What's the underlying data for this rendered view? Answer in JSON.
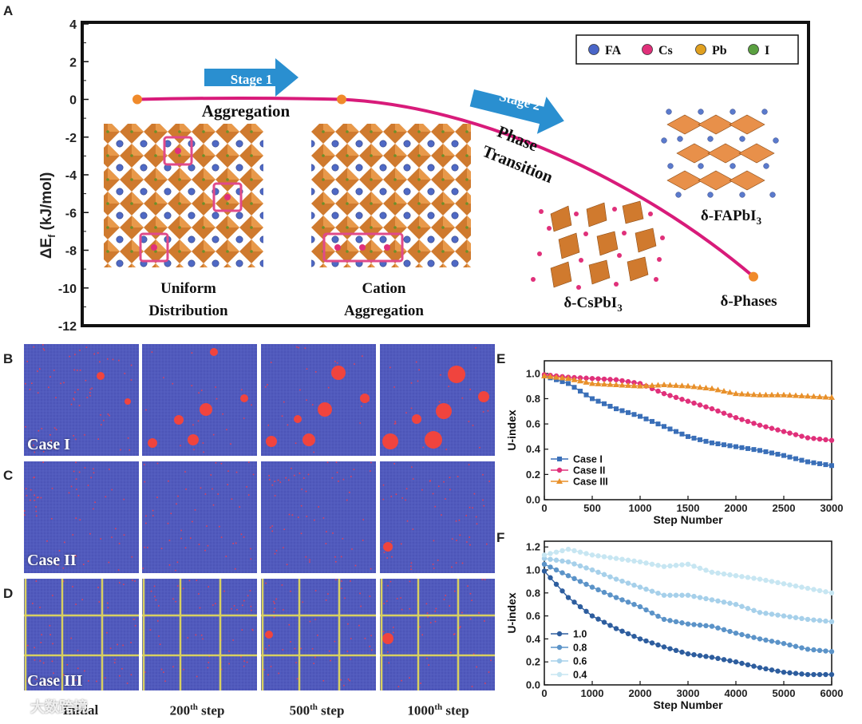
{
  "panel_letters": {
    "a": "A",
    "b": "B",
    "c": "C",
    "d": "D",
    "e": "E",
    "f": "F"
  },
  "panelA": {
    "ylabel": "ΔE",
    "ylabel_sub": "f",
    "ylabel_unit": " (kJ/mol)",
    "yticks": [
      "4",
      "2",
      "0",
      "-2",
      "-4",
      "-6",
      "-8",
      "-10",
      "-12"
    ],
    "stage1": "Stage 1",
    "stage2": "Stage 2",
    "aggregation": "Aggregation",
    "phase": "Phase",
    "transition": "Transition",
    "uniform_line1": "Uniform",
    "uniform_line2": "Distribution",
    "cation_line1": "Cation",
    "cation_line2": "Aggregation",
    "delta_cs": "δ-CsPbI",
    "delta_fa": "δ-FAPbI",
    "sub3": "3",
    "delta_phases": "δ-Phases",
    "legend": [
      {
        "label": "FA",
        "color": "#4a66c8"
      },
      {
        "label": "Cs",
        "color": "#e0307a"
      },
      {
        "label": "Pb",
        "color": "#e0a020"
      },
      {
        "label": "I",
        "color": "#5aa040"
      }
    ],
    "colors": {
      "curve": "#d81b7a",
      "dot": "#f08a2a",
      "arrow": "#2a8fd0"
    }
  },
  "cases": [
    "Case I",
    "Case II",
    "Case III"
  ],
  "col_titles": [
    {
      "main": "Initial",
      "sup": ""
    },
    {
      "main": "200",
      "sup": "th",
      "rest": " step"
    },
    {
      "main": "500",
      "sup": "th",
      "rest": " step"
    },
    {
      "main": "1000",
      "sup": "th",
      "rest": " step"
    }
  ],
  "watermark": "大数跨境",
  "panelE": {
    "ylabel": "U-index",
    "xlabel": "Step Number",
    "xticks": [
      "0",
      "500",
      "1000",
      "1500",
      "2000",
      "2500",
      "3000"
    ],
    "yticks": [
      "0.0",
      "0.2",
      "0.4",
      "0.6",
      "0.8",
      "1.0"
    ],
    "legend": [
      "Case I",
      "Case II",
      "Case III"
    ]
  },
  "panelF": {
    "ylabel": "U-index",
    "xlabel": "Step Number",
    "xticks": [
      "0",
      "1000",
      "2000",
      "3000",
      "4000",
      "5000",
      "6000"
    ],
    "yticks": [
      "0.0",
      "0.2",
      "0.4",
      "0.6",
      "0.8",
      "1.0",
      "1.2"
    ],
    "legend": [
      "1.0",
      "0.8",
      "0.6",
      "0.4"
    ]
  },
  "chart_data": [
    {
      "type": "line",
      "panel": "A",
      "ylabel": "ΔEf (kJ/mol)",
      "ylim": [
        -12,
        4
      ],
      "series": [
        {
          "x": [
            0,
            1,
            2
          ],
          "values": [
            0,
            0,
            -9.4
          ]
        }
      ]
    },
    {
      "type": "scatter",
      "panel": "E",
      "xlabel": "Step Number",
      "ylabel": "U-index",
      "xlim": [
        0,
        3000
      ],
      "ylim": [
        0,
        1.1
      ],
      "series": [
        {
          "name": "Case I",
          "color": "#3a6fb8",
          "marker": "square",
          "x": [
            0,
            250,
            500,
            750,
            1000,
            1250,
            1500,
            1750,
            2000,
            2250,
            2500,
            2750,
            3000
          ],
          "values": [
            0.98,
            0.92,
            0.8,
            0.72,
            0.66,
            0.58,
            0.5,
            0.45,
            0.42,
            0.39,
            0.35,
            0.3,
            0.27
          ]
        },
        {
          "name": "Case II",
          "color": "#e0307a",
          "marker": "circle",
          "x": [
            0,
            250,
            500,
            750,
            1000,
            1250,
            1500,
            1750,
            2000,
            2250,
            2500,
            2750,
            3000
          ],
          "values": [
            0.99,
            0.97,
            0.96,
            0.95,
            0.92,
            0.84,
            0.78,
            0.72,
            0.65,
            0.59,
            0.54,
            0.49,
            0.47
          ]
        },
        {
          "name": "Case III",
          "color": "#e8902a",
          "marker": "triangle",
          "x": [
            0,
            250,
            500,
            750,
            1000,
            1250,
            1500,
            1750,
            2000,
            2250,
            2500,
            2750,
            3000
          ],
          "values": [
            0.98,
            0.96,
            0.92,
            0.91,
            0.9,
            0.91,
            0.9,
            0.88,
            0.84,
            0.83,
            0.83,
            0.82,
            0.81
          ]
        }
      ]
    },
    {
      "type": "scatter",
      "panel": "F",
      "xlabel": "Step Number",
      "ylabel": "U-index",
      "xlim": [
        0,
        6000
      ],
      "ylim": [
        0,
        1.25
      ],
      "series": [
        {
          "name": "1.0",
          "color": "#2d5d9e",
          "x": [
            0,
            500,
            1000,
            1500,
            2000,
            2500,
            3000,
            3500,
            4000,
            4500,
            5000,
            5500,
            6000
          ],
          "values": [
            0.99,
            0.76,
            0.6,
            0.49,
            0.4,
            0.33,
            0.27,
            0.24,
            0.2,
            0.15,
            0.11,
            0.09,
            0.09
          ]
        },
        {
          "name": "0.8",
          "color": "#5b93c8",
          "x": [
            0,
            500,
            1000,
            1500,
            2000,
            2500,
            3000,
            3500,
            4000,
            4500,
            5000,
            5500,
            6000
          ],
          "values": [
            1.05,
            0.95,
            0.85,
            0.76,
            0.68,
            0.57,
            0.53,
            0.51,
            0.45,
            0.4,
            0.36,
            0.31,
            0.29
          ]
        },
        {
          "name": "0.6",
          "color": "#a6d0ea",
          "x": [
            0,
            500,
            1000,
            1500,
            2000,
            2500,
            3000,
            3500,
            4000,
            4500,
            5000,
            5500,
            6000
          ],
          "values": [
            1.1,
            1.07,
            1.0,
            0.92,
            0.85,
            0.78,
            0.78,
            0.74,
            0.7,
            0.63,
            0.6,
            0.57,
            0.55
          ]
        },
        {
          "name": "0.4",
          "color": "#c7e6f2",
          "x": [
            0,
            500,
            1000,
            1500,
            2000,
            2500,
            3000,
            3500,
            4000,
            4500,
            5000,
            5500,
            6000
          ],
          "values": [
            1.13,
            1.18,
            1.13,
            1.1,
            1.07,
            1.03,
            1.05,
            0.98,
            0.95,
            0.92,
            0.88,
            0.84,
            0.8
          ]
        }
      ]
    }
  ]
}
